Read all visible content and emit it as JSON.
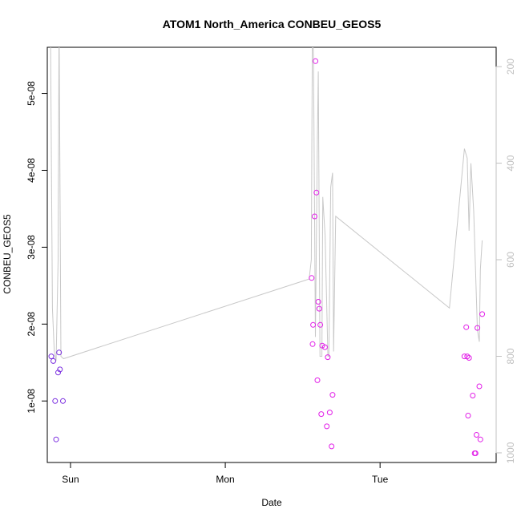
{
  "chart_data": {
    "type": "scatter",
    "title": "ATOM1 North_America CONBEU_GEOS5",
    "xlabel": "Date",
    "ylabel": "CONBEU_GEOS5",
    "x_unit": "days since Saturday 00:00",
    "xlim": [
      0.85,
      3.75
    ],
    "ylim": [
      2e-09,
      5.6e-08
    ],
    "x_ticks": [
      {
        "value": 1.0,
        "label": "Sun"
      },
      {
        "value": 2.0,
        "label": "Mon"
      },
      {
        "value": 3.0,
        "label": "Tue"
      }
    ],
    "y_ticks": [
      {
        "value": 1e-08,
        "label": "1e-08"
      },
      {
        "value": 2e-08,
        "label": "2e-08"
      },
      {
        "value": 3e-08,
        "label": "3e-08"
      },
      {
        "value": 4e-08,
        "label": "4e-08"
      },
      {
        "value": 5e-08,
        "label": "5e-08"
      }
    ],
    "right_axis": {
      "lim": [
        1020,
        160
      ],
      "color": "#c0c0c0",
      "ticks": [
        {
          "value": 200,
          "label": "200"
        },
        {
          "value": 400,
          "label": "400"
        },
        {
          "value": 600,
          "label": "600"
        },
        {
          "value": 800,
          "label": "800"
        },
        {
          "value": 1000,
          "label": "1000"
        }
      ]
    },
    "points": [
      {
        "x": 0.876,
        "y": 1.58e-08,
        "color": "#7b2fe0"
      },
      {
        "x": 0.889,
        "y": 1.52e-08,
        "color": "#7b2fe0"
      },
      {
        "x": 0.901,
        "y": 1e-08,
        "color": "#7b2fe0"
      },
      {
        "x": 0.907,
        "y": 5e-09,
        "color": "#7b2fe0"
      },
      {
        "x": 0.92,
        "y": 1.37e-08,
        "color": "#7b2fe0"
      },
      {
        "x": 0.926,
        "y": 1.63e-08,
        "color": "#7b2fe0"
      },
      {
        "x": 0.932,
        "y": 1.41e-08,
        "color": "#7b2fe0"
      },
      {
        "x": 0.951,
        "y": 1e-08,
        "color": "#7b2fe0"
      },
      {
        "x": 2.558,
        "y": 2.6e-08,
        "color": "#e21fe8"
      },
      {
        "x": 2.564,
        "y": 1.74e-08,
        "color": "#e21fe8"
      },
      {
        "x": 2.567,
        "y": 1.99e-08,
        "color": "#e21fe8"
      },
      {
        "x": 2.577,
        "y": 3.4e-08,
        "color": "#e21fe8"
      },
      {
        "x": 2.583,
        "y": 5.42e-08,
        "color": "#e21fe8"
      },
      {
        "x": 2.589,
        "y": 3.71e-08,
        "color": "#e21fe8"
      },
      {
        "x": 2.595,
        "y": 1.27e-08,
        "color": "#e21fe8"
      },
      {
        "x": 2.601,
        "y": 2.29e-08,
        "color": "#e21fe8"
      },
      {
        "x": 2.607,
        "y": 2.2e-08,
        "color": "#e21fe8"
      },
      {
        "x": 2.614,
        "y": 1.99e-08,
        "color": "#e21fe8"
      },
      {
        "x": 2.62,
        "y": 8.3e-09,
        "color": "#e21fe8"
      },
      {
        "x": 2.626,
        "y": 1.72e-08,
        "color": "#e21fe8"
      },
      {
        "x": 2.644,
        "y": 1.7e-08,
        "color": "#e21fe8"
      },
      {
        "x": 2.656,
        "y": 6.7e-09,
        "color": "#e21fe8"
      },
      {
        "x": 2.662,
        "y": 1.57e-08,
        "color": "#e21fe8"
      },
      {
        "x": 2.675,
        "y": 8.5e-09,
        "color": "#e21fe8"
      },
      {
        "x": 2.687,
        "y": 4.1e-09,
        "color": "#e21fe8"
      },
      {
        "x": 2.693,
        "y": 1.08e-08,
        "color": "#e21fe8"
      },
      {
        "x": 3.545,
        "y": 1.58e-08,
        "color": "#e21fe8"
      },
      {
        "x": 3.557,
        "y": 1.96e-08,
        "color": "#e21fe8"
      },
      {
        "x": 3.563,
        "y": 1.58e-08,
        "color": "#e21fe8"
      },
      {
        "x": 3.569,
        "y": 8.1e-09,
        "color": "#e21fe8"
      },
      {
        "x": 3.575,
        "y": 1.56e-08,
        "color": "#e21fe8"
      },
      {
        "x": 3.599,
        "y": 1.07e-08,
        "color": "#e21fe8"
      },
      {
        "x": 3.611,
        "y": 3.2e-09,
        "color": "#e21fe8"
      },
      {
        "x": 3.617,
        "y": 3.2e-09,
        "color": "#e21fe8"
      },
      {
        "x": 3.623,
        "y": 5.6e-09,
        "color": "#e21fe8"
      },
      {
        "x": 3.629,
        "y": 1.95e-08,
        "color": "#e21fe8"
      },
      {
        "x": 3.641,
        "y": 1.19e-08,
        "color": "#e21fe8"
      },
      {
        "x": 3.648,
        "y": 5e-09,
        "color": "#e21fe8"
      },
      {
        "x": 3.66,
        "y": 2.13e-08,
        "color": "#e21fe8"
      }
    ],
    "line": {
      "color": "#c8c8c8",
      "axis": "right",
      "points": [
        [
          0.87,
          100
        ],
        [
          0.883,
          700
        ],
        [
          0.895,
          790
        ],
        [
          0.907,
          810
        ],
        [
          0.92,
          600
        ],
        [
          0.926,
          100
        ],
        [
          0.938,
          800
        ],
        [
          0.955,
          805
        ],
        [
          2.542,
          640
        ],
        [
          2.556,
          600
        ],
        [
          2.563,
          100
        ],
        [
          2.57,
          180
        ],
        [
          2.582,
          760
        ],
        [
          2.595,
          350
        ],
        [
          2.601,
          210
        ],
        [
          2.612,
          800
        ],
        [
          2.624,
          800
        ],
        [
          2.63,
          470
        ],
        [
          2.645,
          550
        ],
        [
          2.663,
          800
        ],
        [
          2.669,
          800
        ],
        [
          2.681,
          450
        ],
        [
          2.693,
          420
        ],
        [
          2.7,
          790
        ],
        [
          2.713,
          510
        ],
        [
          3.448,
          700
        ],
        [
          3.545,
          370
        ],
        [
          3.563,
          390
        ],
        [
          3.575,
          540
        ],
        [
          3.587,
          400
        ],
        [
          3.605,
          500
        ],
        [
          3.629,
          745
        ],
        [
          3.641,
          770
        ],
        [
          3.648,
          620
        ],
        [
          3.66,
          560
        ]
      ]
    }
  }
}
